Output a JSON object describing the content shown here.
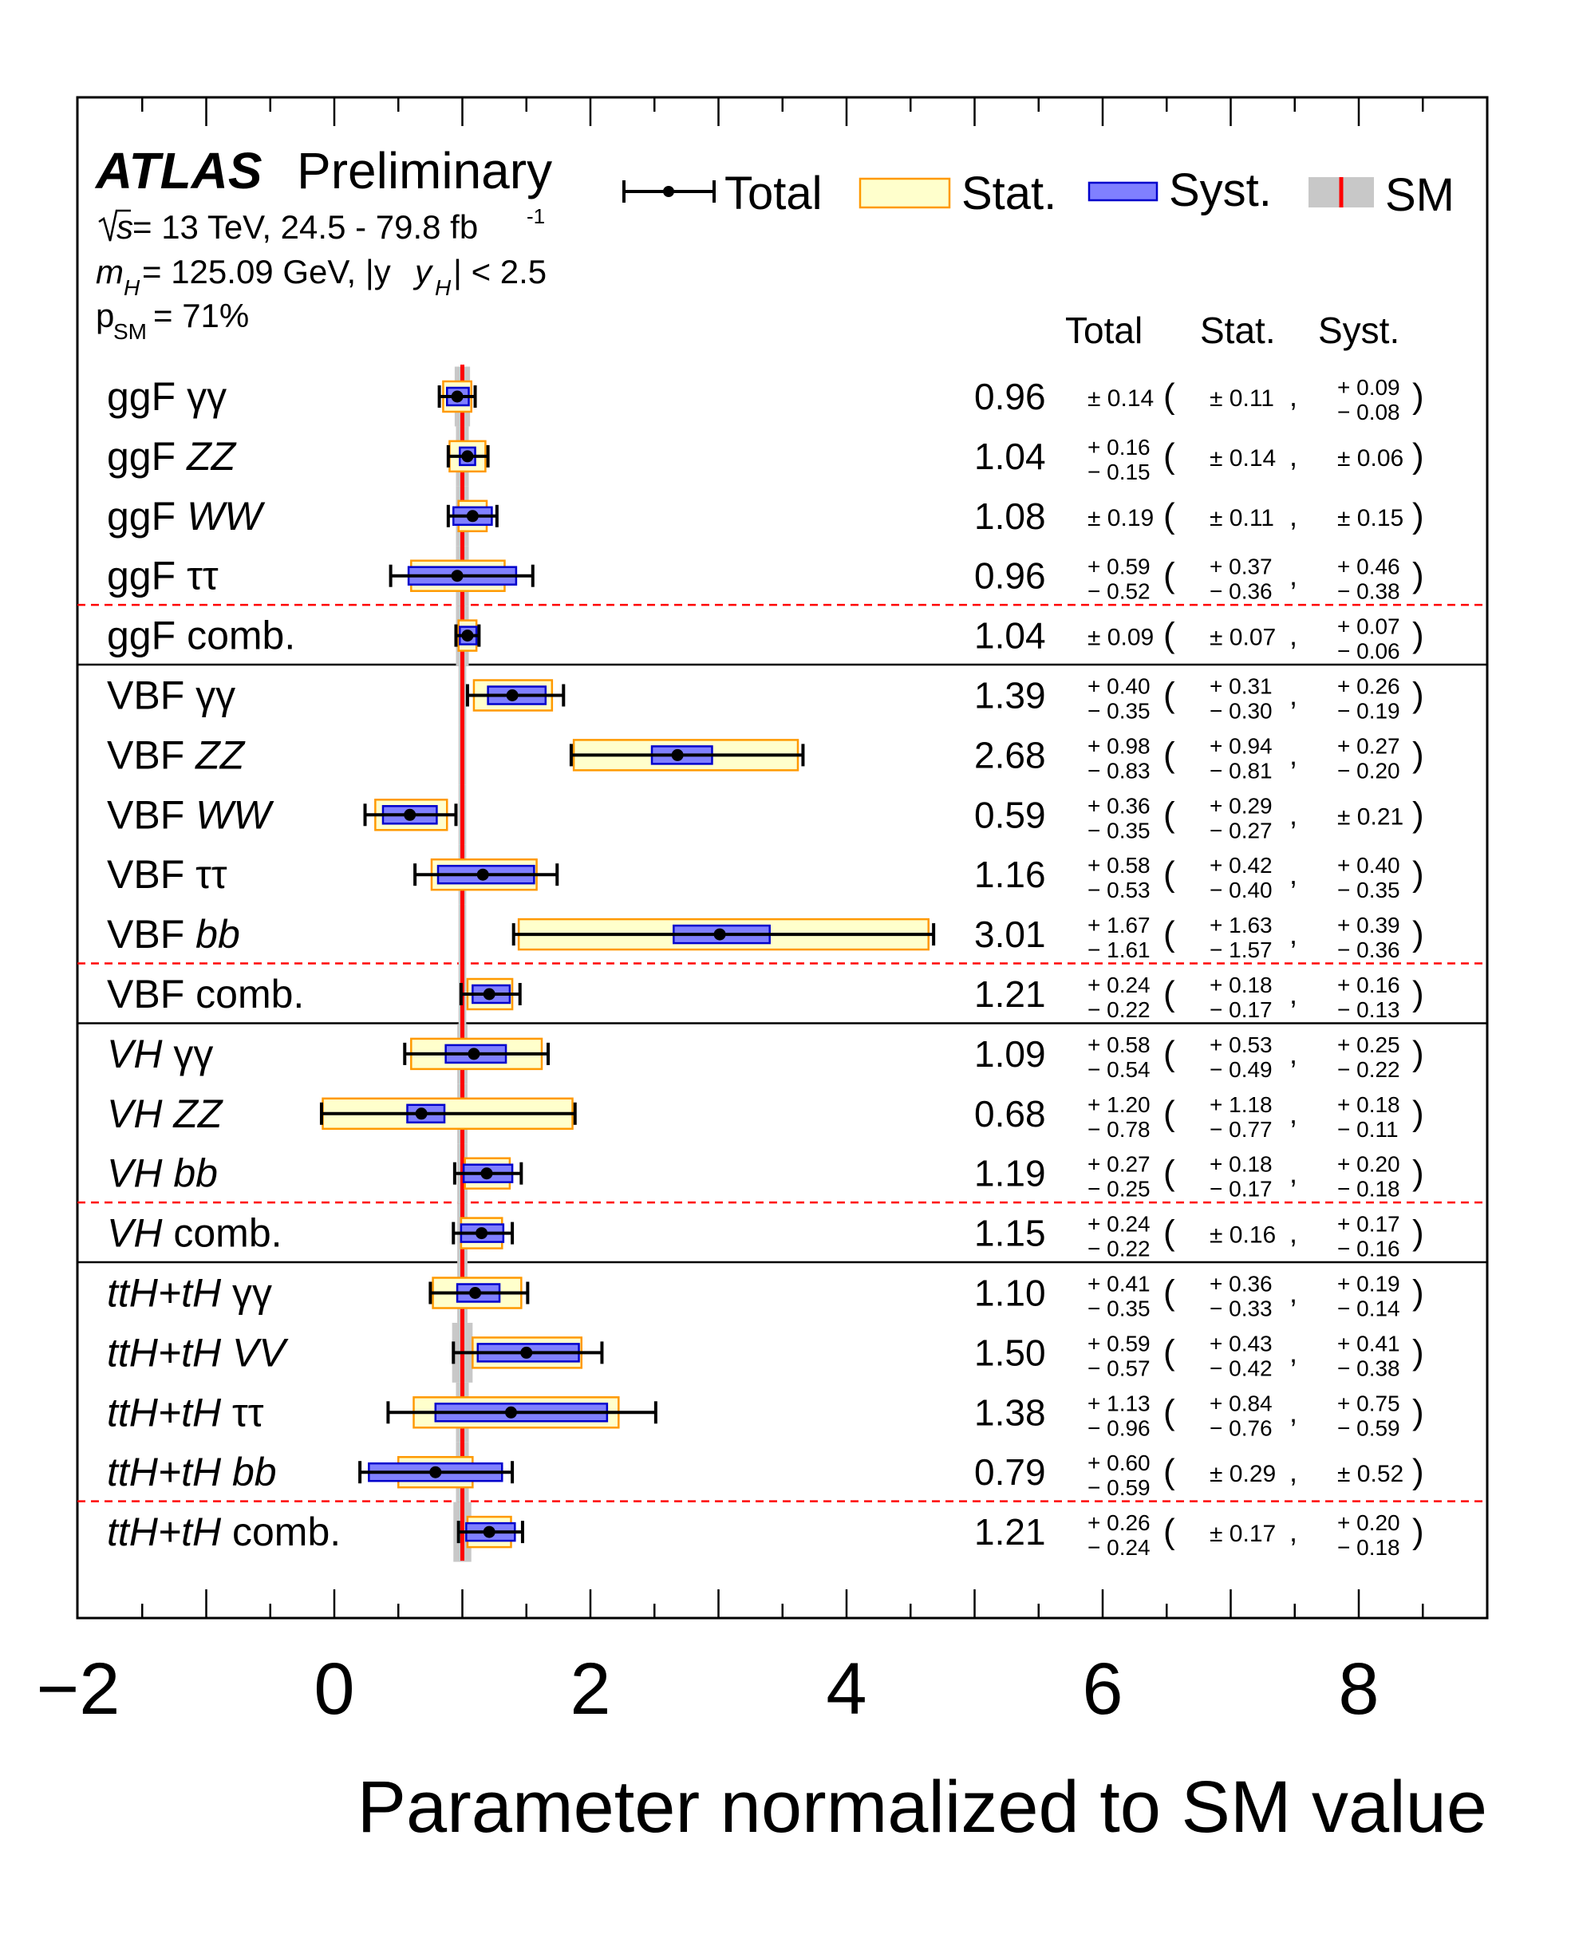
{
  "chart_data": {
    "type": "forest",
    "header": {
      "experiment": "ATLAS",
      "status": "Preliminary",
      "energy_prefix": "s",
      "energy_text": " = 13 TeV, 24.5 - 79.8 fb",
      "lumi_sup": "-1",
      "mass_var": "m",
      "mass_sub": "H",
      "mass_text": " = 125.09 GeV, |y",
      "rap_sub": "H",
      "rap_text": "| < 2.5",
      "p_main": "p",
      "p_sub": "SM",
      "p_text": " = 71%"
    },
    "legend": [
      "Total",
      "Stat.",
      "Syst.",
      "SM"
    ],
    "legend_position": "top-right",
    "columns": [
      "Total",
      "Stat.",
      "Syst."
    ],
    "xlabel": "Parameter normalized to SM value",
    "xlim": [
      -2,
      9
    ],
    "xticks": [
      "−2",
      "0",
      "2",
      "4",
      "6",
      "8"
    ],
    "sm_value": 1,
    "rows": [
      {
        "label_prod": "ggF",
        "label_decay": "γγ",
        "prod_italic": false,
        "decay_italic": false,
        "value": 0.96,
        "value_text": "0.96",
        "tot_up": 0.14,
        "tot_dn": 0.14,
        "stat_up": 0.11,
        "stat_dn": 0.11,
        "syst_up": 0.09,
        "syst_dn": 0.08,
        "sm_width": 0.12,
        "tot_text": "± 0.14",
        "stat_text": "± 0.11",
        "syst_text_up": "+ 0.09",
        "syst_text_dn": "− 0.08"
      },
      {
        "label_prod": "ggF",
        "label_decay": "ZZ",
        "prod_italic": false,
        "decay_italic": true,
        "value": 1.04,
        "value_text": "1.04",
        "tot_up": 0.16,
        "tot_dn": 0.15,
        "stat_up": 0.14,
        "stat_dn": 0.14,
        "syst_up": 0.06,
        "syst_dn": 0.06,
        "sm_width": 0.1,
        "tot_text_up": "+ 0.16",
        "tot_text_dn": "− 0.15",
        "stat_text": "± 0.14",
        "syst_text": "± 0.06"
      },
      {
        "label_prod": "ggF",
        "label_decay": "WW",
        "prod_italic": false,
        "decay_italic": true,
        "value": 1.08,
        "value_text": "1.08",
        "tot_up": 0.19,
        "tot_dn": 0.19,
        "stat_up": 0.11,
        "stat_dn": 0.11,
        "syst_up": 0.15,
        "syst_dn": 0.15,
        "sm_width": 0.1,
        "tot_text": "± 0.19",
        "stat_text": "± 0.11",
        "syst_text": "± 0.15"
      },
      {
        "label_prod": "ggF",
        "label_decay": "ττ",
        "prod_italic": false,
        "decay_italic": false,
        "value": 0.96,
        "value_text": "0.96",
        "tot_up": 0.59,
        "tot_dn": 0.52,
        "stat_up": 0.37,
        "stat_dn": 0.36,
        "syst_up": 0.46,
        "syst_dn": 0.38,
        "sm_width": 0.1,
        "tot_text_up": "+ 0.59",
        "tot_text_dn": "− 0.52",
        "stat_text_up": "+ 0.37",
        "stat_text_dn": "− 0.36",
        "syst_text_up": "+ 0.46",
        "syst_text_dn": "− 0.38"
      },
      {
        "label_prod": "ggF",
        "label_decay": " comb.",
        "prod_italic": false,
        "decay_italic": false,
        "combined": true,
        "value": 1.04,
        "value_text": "1.04",
        "tot_up": 0.09,
        "tot_dn": 0.09,
        "stat_up": 0.07,
        "stat_dn": 0.07,
        "syst_up": 0.07,
        "syst_dn": 0.06,
        "sm_width": 0.1,
        "tot_text": "± 0.09",
        "stat_text": "± 0.07",
        "syst_text_up": "+ 0.07",
        "syst_text_dn": "− 0.06"
      },
      {
        "label_prod": "VBF",
        "label_decay": "γγ",
        "prod_italic": false,
        "decay_italic": false,
        "value": 1.39,
        "value_text": "1.39",
        "tot_up": 0.4,
        "tot_dn": 0.35,
        "stat_up": 0.31,
        "stat_dn": 0.3,
        "syst_up": 0.26,
        "syst_dn": 0.19,
        "sm_width": 0.06,
        "tot_text_up": "+ 0.40",
        "tot_text_dn": "− 0.35",
        "stat_text_up": "+ 0.31",
        "stat_text_dn": "− 0.30",
        "syst_text_up": "+ 0.26",
        "syst_text_dn": "− 0.19"
      },
      {
        "label_prod": "VBF",
        "label_decay": "ZZ",
        "prod_italic": false,
        "decay_italic": true,
        "value": 2.68,
        "value_text": "2.68",
        "tot_up": 0.98,
        "tot_dn": 0.83,
        "stat_up": 0.94,
        "stat_dn": 0.81,
        "syst_up": 0.27,
        "syst_dn": 0.2,
        "sm_width": 0.06,
        "tot_text_up": "+ 0.98",
        "tot_text_dn": "− 0.83",
        "stat_text_up": "+ 0.94",
        "stat_text_dn": "− 0.81",
        "syst_text_up": "+ 0.27",
        "syst_text_dn": "− 0.20"
      },
      {
        "label_prod": "VBF",
        "label_decay": "WW",
        "prod_italic": false,
        "decay_italic": true,
        "value": 0.59,
        "value_text": "0.59",
        "tot_up": 0.36,
        "tot_dn": 0.35,
        "stat_up": 0.29,
        "stat_dn": 0.27,
        "syst_up": 0.21,
        "syst_dn": 0.21,
        "sm_width": 0.06,
        "tot_text_up": "+ 0.36",
        "tot_text_dn": "− 0.35",
        "stat_text_up": "+ 0.29",
        "stat_text_dn": "− 0.27",
        "syst_text": "± 0.21"
      },
      {
        "label_prod": "VBF",
        "label_decay": "ττ",
        "prod_italic": false,
        "decay_italic": false,
        "value": 1.16,
        "value_text": "1.16",
        "tot_up": 0.58,
        "tot_dn": 0.53,
        "stat_up": 0.42,
        "stat_dn": 0.4,
        "syst_up": 0.4,
        "syst_dn": 0.35,
        "sm_width": 0.06,
        "tot_text_up": "+ 0.58",
        "tot_text_dn": "− 0.53",
        "stat_text_up": "+ 0.42",
        "stat_text_dn": "− 0.40",
        "syst_text_up": "+ 0.40",
        "syst_text_dn": "− 0.35"
      },
      {
        "label_prod": "VBF",
        "label_decay": "bb",
        "prod_italic": false,
        "decay_italic": true,
        "value": 3.01,
        "value_text": "3.01",
        "tot_up": 1.67,
        "tot_dn": 1.61,
        "stat_up": 1.63,
        "stat_dn": 1.57,
        "syst_up": 0.39,
        "syst_dn": 0.36,
        "sm_width": 0.06,
        "tot_text_up": "+ 1.67",
        "tot_text_dn": "− 1.61",
        "stat_text_up": "+ 1.63",
        "stat_text_dn": "− 1.57",
        "syst_text_up": "+ 0.39",
        "syst_text_dn": "− 0.36"
      },
      {
        "label_prod": "VBF",
        "label_decay": " comb.",
        "prod_italic": false,
        "decay_italic": false,
        "combined": true,
        "value": 1.21,
        "value_text": "1.21",
        "tot_up": 0.24,
        "tot_dn": 0.22,
        "stat_up": 0.18,
        "stat_dn": 0.17,
        "syst_up": 0.16,
        "syst_dn": 0.13,
        "sm_width": 0.06,
        "tot_text_up": "+ 0.24",
        "tot_text_dn": "− 0.22",
        "stat_text_up": "+ 0.18",
        "stat_text_dn": "− 0.17",
        "syst_text_up": "+ 0.16",
        "syst_text_dn": "− 0.13"
      },
      {
        "label_prod": "VH",
        "label_decay": "γγ",
        "prod_italic": true,
        "decay_italic": false,
        "value": 1.09,
        "value_text": "1.09",
        "tot_up": 0.58,
        "tot_dn": 0.54,
        "stat_up": 0.53,
        "stat_dn": 0.49,
        "syst_up": 0.25,
        "syst_dn": 0.22,
        "sm_width": 0.08,
        "tot_text_up": "+ 0.58",
        "tot_text_dn": "− 0.54",
        "stat_text_up": "+ 0.53",
        "stat_text_dn": "− 0.49",
        "syst_text_up": "+ 0.25",
        "syst_text_dn": "− 0.22"
      },
      {
        "label_prod": "VH",
        "label_decay": "ZZ",
        "prod_italic": true,
        "decay_italic": true,
        "value": 0.68,
        "value_text": "0.68",
        "tot_up": 1.2,
        "tot_dn": 0.78,
        "stat_up": 1.18,
        "stat_dn": 0.77,
        "syst_up": 0.18,
        "syst_dn": 0.11,
        "sm_width": 0.08,
        "tot_text_up": "+ 1.20",
        "tot_text_dn": "− 0.78",
        "stat_text_up": "+ 1.18",
        "stat_text_dn": "− 0.77",
        "syst_text_up": "+ 0.18",
        "syst_text_dn": "− 0.11"
      },
      {
        "label_prod": "VH",
        "label_decay": "bb",
        "prod_italic": true,
        "decay_italic": true,
        "value": 1.19,
        "value_text": "1.19",
        "tot_up": 0.27,
        "tot_dn": 0.25,
        "stat_up": 0.18,
        "stat_dn": 0.17,
        "syst_up": 0.2,
        "syst_dn": 0.18,
        "sm_width": 0.08,
        "tot_text_up": "+ 0.27",
        "tot_text_dn": "− 0.25",
        "stat_text_up": "+ 0.18",
        "stat_text_dn": "− 0.17",
        "syst_text_up": "+ 0.20",
        "syst_text_dn": "− 0.18"
      },
      {
        "label_prod": "VH",
        "label_decay": " comb.",
        "prod_italic": true,
        "decay_italic": false,
        "combined": true,
        "value": 1.15,
        "value_text": "1.15",
        "tot_up": 0.24,
        "tot_dn": 0.22,
        "stat_up": 0.16,
        "stat_dn": 0.16,
        "syst_up": 0.17,
        "syst_dn": 0.16,
        "sm_width": 0.08,
        "tot_text_up": "+ 0.24",
        "tot_text_dn": "− 0.22",
        "stat_text": "± 0.16",
        "syst_text_up": "+ 0.17",
        "syst_text_dn": "− 0.16"
      },
      {
        "label_prod": "ttH+tH",
        "label_decay": "γγ",
        "prod_italic": true,
        "decay_italic": false,
        "value": 1.1,
        "value_text": "1.10",
        "tot_up": 0.41,
        "tot_dn": 0.35,
        "stat_up": 0.36,
        "stat_dn": 0.33,
        "syst_up": 0.19,
        "syst_dn": 0.14,
        "sm_width": 0.08,
        "tot_text_up": "+ 0.41",
        "tot_text_dn": "− 0.35",
        "stat_text_up": "+ 0.36",
        "stat_text_dn": "− 0.33",
        "syst_text_up": "+ 0.19",
        "syst_text_dn": "− 0.14"
      },
      {
        "label_prod": "ttH+tH",
        "label_decay": "VV",
        "prod_italic": true,
        "decay_italic": true,
        "value": 1.5,
        "value_text": "1.50",
        "tot_up": 0.59,
        "tot_dn": 0.57,
        "stat_up": 0.43,
        "stat_dn": 0.42,
        "syst_up": 0.41,
        "syst_dn": 0.38,
        "sm_width": 0.16,
        "tot_text_up": "+ 0.59",
        "tot_text_dn": "− 0.57",
        "stat_text_up": "+ 0.43",
        "stat_text_dn": "− 0.42",
        "syst_text_up": "+ 0.41",
        "syst_text_dn": "− 0.38"
      },
      {
        "label_prod": "ttH+tH",
        "label_decay": "ττ",
        "prod_italic": true,
        "decay_italic": false,
        "value": 1.38,
        "value_text": "1.38",
        "tot_up": 1.13,
        "tot_dn": 0.96,
        "stat_up": 0.84,
        "stat_dn": 0.76,
        "syst_up": 0.75,
        "syst_dn": 0.59,
        "sm_width": 0.1,
        "tot_text_up": "+ 1.13",
        "tot_text_dn": "− 0.96",
        "stat_text_up": "+ 0.84",
        "stat_text_dn": "− 0.76",
        "syst_text_up": "+ 0.75",
        "syst_text_dn": "− 0.59"
      },
      {
        "label_prod": "ttH+tH",
        "label_decay": "bb",
        "prod_italic": true,
        "decay_italic": true,
        "value": 0.79,
        "value_text": "0.79",
        "tot_up": 0.6,
        "tot_dn": 0.59,
        "stat_up": 0.29,
        "stat_dn": 0.29,
        "syst_up": 0.52,
        "syst_dn": 0.52,
        "sm_width": 0.1,
        "tot_text_up": "+ 0.60",
        "tot_text_dn": "− 0.59",
        "stat_text": "± 0.29",
        "syst_text": "± 0.52"
      },
      {
        "label_prod": "ttH+tH",
        "label_decay": " comb.",
        "prod_italic": true,
        "decay_italic": false,
        "combined": true,
        "value": 1.21,
        "value_text": "1.21",
        "tot_up": 0.26,
        "tot_dn": 0.24,
        "stat_up": 0.17,
        "stat_dn": 0.17,
        "syst_up": 0.2,
        "syst_dn": 0.18,
        "sm_width": 0.14,
        "tot_text_up": "+ 0.26",
        "tot_text_dn": "− 0.24",
        "stat_text": "± 0.17",
        "syst_text_up": "+ 0.20",
        "syst_text_dn": "− 0.18"
      }
    ],
    "colors": {
      "stat_fill": "#ffffcc",
      "stat_edge": "#ff9900",
      "syst_fill": "#8080ff",
      "syst_edge": "#0000cc",
      "sm_line": "#ff0000",
      "sm_band": "#c8c8c8",
      "separator": "#ff0000"
    }
  }
}
